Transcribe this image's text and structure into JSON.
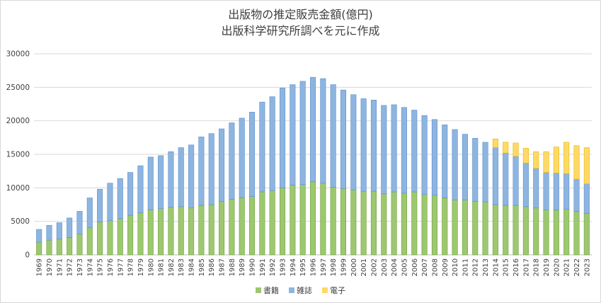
{
  "chart_data": {
    "type": "bar",
    "stacked": true,
    "title": "出版物の推定販売金額(億円)",
    "subtitle": "出版科学研究所調べを元に作成",
    "categories": [
      "1969",
      "1970",
      "1971",
      "1972",
      "1973",
      "1974",
      "1975",
      "1976",
      "1977",
      "1978",
      "1979",
      "1980",
      "1981",
      "1982",
      "1983",
      "1984",
      "1985",
      "1986",
      "1987",
      "1988",
      "1989",
      "1990",
      "1991",
      "1992",
      "1993",
      "1994",
      "1995",
      "1996",
      "1997",
      "1998",
      "1999",
      "2000",
      "2001",
      "2002",
      "2003",
      "2004",
      "2005",
      "2006",
      "2007",
      "2008",
      "2009",
      "2010",
      "2011",
      "2012",
      "2013",
      "2014",
      "2015",
      "2016",
      "2017",
      "2018",
      "2019",
      "2020",
      "2021",
      "2022",
      "2023"
    ],
    "series": [
      {
        "name": "書籍",
        "color": "#9dc86f",
        "values": [
          1900,
          2200,
          2400,
          2600,
          3100,
          4100,
          4900,
          5100,
          5400,
          5900,
          6300,
          6700,
          6900,
          7100,
          7200,
          7000,
          7400,
          7500,
          8000,
          8300,
          8500,
          8700,
          9400,
          9600,
          10000,
          10400,
          10500,
          10900,
          10700,
          10100,
          9900,
          9700,
          9500,
          9500,
          9100,
          9400,
          9200,
          9400,
          9000,
          8900,
          8500,
          8200,
          8200,
          8000,
          7900,
          7500,
          7400,
          7400,
          7200,
          7000,
          6700,
          6700,
          6800,
          6500,
          6200
        ]
      },
      {
        "name": "雑誌",
        "color": "#8eb5e0",
        "values": [
          1900,
          2200,
          2400,
          2900,
          3400,
          4400,
          4900,
          5600,
          6000,
          6400,
          7000,
          7900,
          7900,
          8300,
          8800,
          9400,
          10200,
          10600,
          10800,
          11400,
          11900,
          12600,
          13400,
          14000,
          14900,
          15000,
          15400,
          15600,
          15600,
          15300,
          14700,
          14200,
          13800,
          13600,
          13200,
          13000,
          12800,
          12200,
          11800,
          11300,
          10900,
          10500,
          9800,
          9400,
          8900,
          8500,
          7800,
          7300,
          6500,
          5900,
          5600,
          5500,
          5300,
          4800,
          4400
        ]
      },
      {
        "name": "電子",
        "color": "#ffd966",
        "values": [
          0,
          0,
          0,
          0,
          0,
          0,
          0,
          0,
          0,
          0,
          0,
          0,
          0,
          0,
          0,
          0,
          0,
          0,
          0,
          0,
          0,
          0,
          0,
          0,
          0,
          0,
          0,
          0,
          0,
          0,
          0,
          0,
          0,
          0,
          0,
          0,
          0,
          0,
          0,
          0,
          0,
          0,
          0,
          0,
          0,
          1300,
          1600,
          2000,
          2200,
          2500,
          3100,
          3900,
          4700,
          5000,
          5400
        ]
      }
    ],
    "ylim": [
      0,
      30000
    ],
    "yticks": [
      0,
      5000,
      10000,
      15000,
      20000,
      25000,
      30000
    ],
    "grid": true,
    "legend": "bottom"
  }
}
